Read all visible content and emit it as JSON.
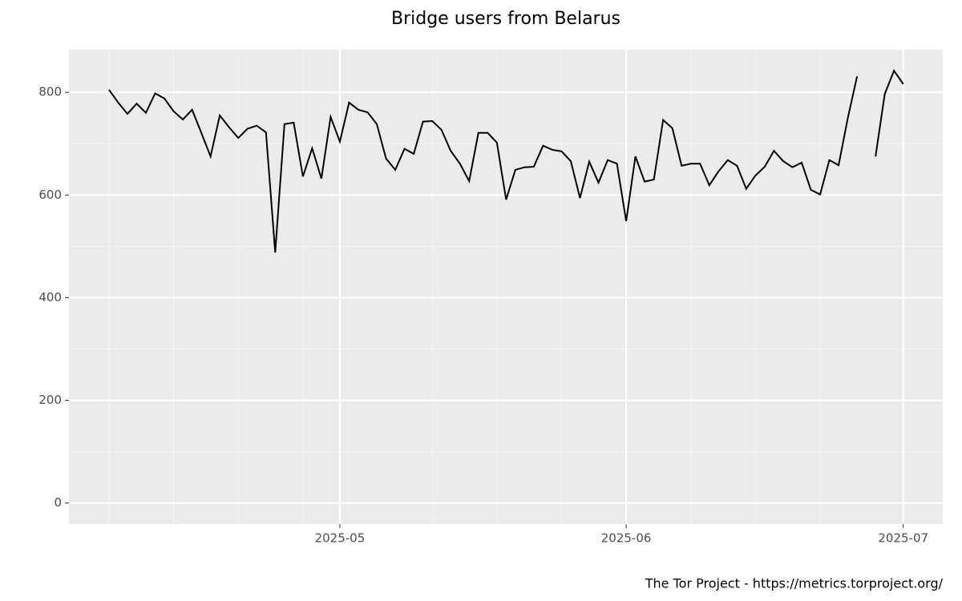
{
  "chart_data": {
    "type": "line",
    "title": "Bridge users from Belarus",
    "caption": "The Tor Project - https://metrics.torproject.org/",
    "x": [
      "2025-04-06",
      "2025-04-07",
      "2025-04-08",
      "2025-04-09",
      "2025-04-10",
      "2025-04-11",
      "2025-04-12",
      "2025-04-13",
      "2025-04-14",
      "2025-04-15",
      "2025-04-16",
      "2025-04-17",
      "2025-04-18",
      "2025-04-19",
      "2025-04-20",
      "2025-04-21",
      "2025-04-22",
      "2025-04-23",
      "2025-04-24",
      "2025-04-25",
      "2025-04-26",
      "2025-04-27",
      "2025-04-28",
      "2025-04-29",
      "2025-04-30",
      "2025-05-01",
      "2025-05-02",
      "2025-05-03",
      "2025-05-04",
      "2025-05-05",
      "2025-05-06",
      "2025-05-07",
      "2025-05-08",
      "2025-05-09",
      "2025-05-10",
      "2025-05-11",
      "2025-05-12",
      "2025-05-13",
      "2025-05-14",
      "2025-05-15",
      "2025-05-16",
      "2025-05-17",
      "2025-05-18",
      "2025-05-19",
      "2025-05-20",
      "2025-05-21",
      "2025-05-22",
      "2025-05-23",
      "2025-05-24",
      "2025-05-25",
      "2025-05-26",
      "2025-05-27",
      "2025-05-28",
      "2025-05-29",
      "2025-05-30",
      "2025-05-31",
      "2025-06-01",
      "2025-06-02",
      "2025-06-03",
      "2025-06-04",
      "2025-06-05",
      "2025-06-06",
      "2025-06-07",
      "2025-06-08",
      "2025-06-09",
      "2025-06-10",
      "2025-06-11",
      "2025-06-12",
      "2025-06-13",
      "2025-06-14",
      "2025-06-15",
      "2025-06-16",
      "2025-06-17",
      "2025-06-18",
      "2025-06-19",
      "2025-06-20",
      "2025-06-21",
      "2025-06-22",
      "2025-06-23",
      "2025-06-24",
      "2025-06-25",
      "2025-06-26",
      "2025-06-27",
      "2025-06-28",
      "2025-06-29",
      "2025-06-30",
      "2025-07-01"
    ],
    "series": [
      {
        "name": "users",
        "color": "#000000",
        "values": [
          805,
          780,
          758,
          778,
          760,
          798,
          788,
          763,
          747,
          766,
          721,
          675,
          755,
          732,
          711,
          729,
          735,
          722,
          488,
          738,
          741,
          636,
          691,
          632,
          752,
          704,
          780,
          766,
          761,
          738,
          671,
          649,
          690,
          680,
          743,
          744,
          727,
          686,
          661,
          627,
          721,
          721,
          702,
          591,
          649,
          654,
          655,
          696,
          688,
          685,
          666,
          594,
          665,
          624,
          668,
          661,
          549,
          675,
          626,
          630,
          746,
          730,
          657,
          661,
          661,
          619,
          646,
          668,
          657,
          612,
          638,
          655,
          686,
          666,
          654,
          663,
          610,
          601,
          668,
          658,
          750,
          831,
          null,
          675,
          797,
          842,
          816
        ]
      }
    ],
    "xlim": [
      "2025-04-01T16:00:00",
      "2025-07-05T06:40:00"
    ],
    "xticks": [
      {
        "value": "2025-05-01",
        "label": "2025-05"
      },
      {
        "value": "2025-06-01",
        "label": "2025-06"
      },
      {
        "value": "2025-07-01",
        "label": "2025-07"
      }
    ],
    "xminor": [
      "2025-04-06",
      "2025-04-13",
      "2025-04-20",
      "2025-04-27",
      "2025-05-11",
      "2025-05-18",
      "2025-05-25",
      "2025-06-08",
      "2025-06-15",
      "2025-06-22"
    ],
    "ylim": [
      -41,
      883
    ],
    "yticks": [
      0,
      200,
      400,
      600,
      800
    ],
    "yminor": [
      100,
      300,
      500,
      700
    ],
    "grid": true
  }
}
